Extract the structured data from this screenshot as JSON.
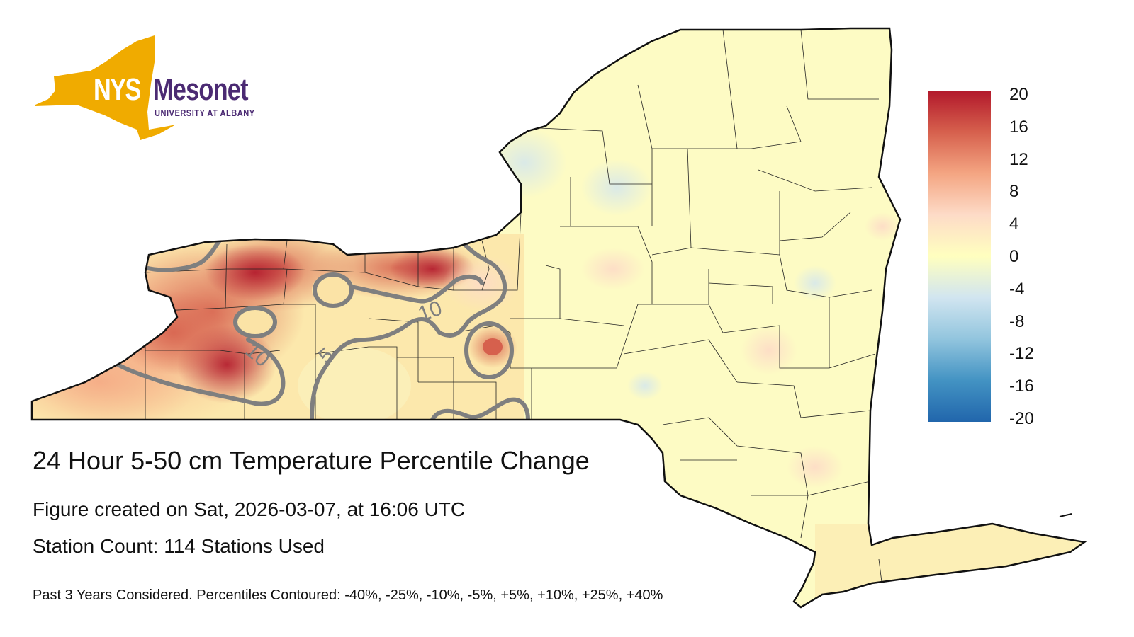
{
  "logo": {
    "nys": "NYS",
    "mesonet": "Mesonet",
    "university": "UNIVERSITY AT ALBANY",
    "state_color": "#f0ab00",
    "text_color": "#4b2a73"
  },
  "title": "24 Hour 5-50 cm Temperature Percentile Change",
  "created": "Figure created on Sat, 2026-03-07, at 16:06 UTC",
  "station_count": "Station Count: 114 Stations Used",
  "footnote": "Past 3 Years Considered. Percentiles Contoured: -40%, -25%, -10%, -5%, +5%, +10%, +25%, +40%",
  "contour_labels": [
    "10",
    "10",
    "5"
  ],
  "colorbar": {
    "ticks": [
      "20",
      "16",
      "12",
      "8",
      "4",
      "0",
      "-4",
      "-8",
      "-12",
      "-16",
      "-20"
    ],
    "colors": [
      "#b2182b",
      "#d6604d",
      "#f4a582",
      "#fddbc7",
      "#ffffbf",
      "#d1e5f0",
      "#92c5de",
      "#4393c3",
      "#2166ac"
    ]
  }
}
